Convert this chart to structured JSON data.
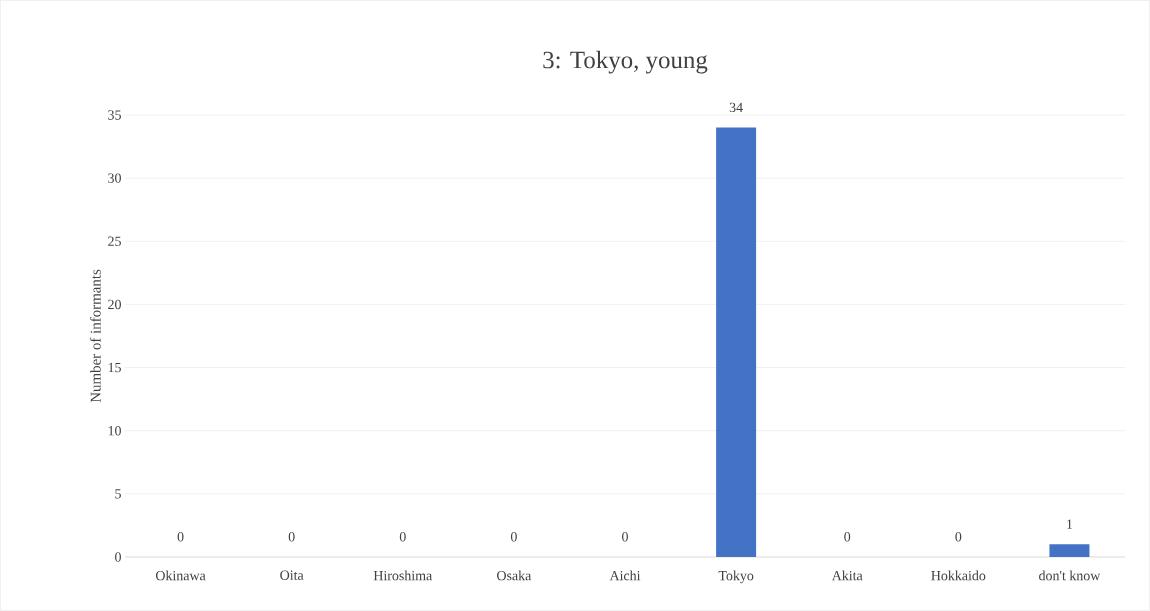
{
  "chart_data": {
    "type": "bar",
    "title": "3: Tokyo, young",
    "ylabel": "Number of informants",
    "categories": [
      "Okinawa",
      "Oita",
      "Hiroshima",
      "Osaka",
      "Aichi",
      "Tokyo",
      "Akita",
      "Hokkaido",
      "don't know"
    ],
    "values": [
      0,
      0,
      0,
      0,
      0,
      34,
      0,
      0,
      1
    ],
    "color": "#4472c4",
    "ylim": [
      0,
      35
    ],
    "yticks": [
      0,
      5,
      10,
      15,
      20,
      25,
      30,
      35
    ],
    "grid": "y",
    "data_labels": true
  }
}
